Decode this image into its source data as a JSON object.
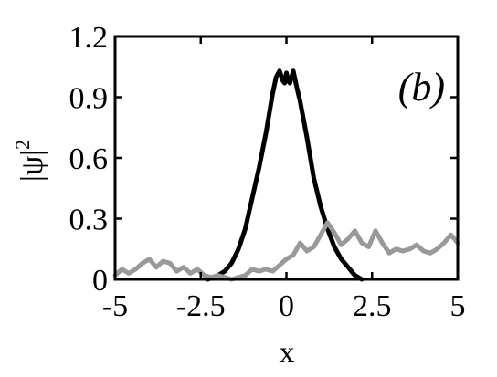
{
  "chart_data": {
    "type": "line",
    "panel_label": "(b)",
    "xlabel": "x",
    "ylabel_base": "|ψ|",
    "ylabel_sup": "2",
    "xlim": [
      -5,
      5
    ],
    "ylim": [
      0,
      1.2
    ],
    "xticks": [
      -5,
      -2.5,
      0,
      2.5,
      5
    ],
    "xtick_labels": [
      "-5",
      "-2.5",
      "0",
      "2.5",
      "5"
    ],
    "yticks": [
      0,
      0.3,
      0.6,
      0.9,
      1.2
    ],
    "ytick_labels": [
      "0",
      "0.3",
      "0.6",
      "0.9",
      "1.2"
    ],
    "grid": false,
    "series": [
      {
        "color": "#000000",
        "x": [
          -2.3,
          -2.0,
          -1.8,
          -1.6,
          -1.4,
          -1.2,
          -1.0,
          -0.8,
          -0.6,
          -0.4,
          -0.3,
          -0.2,
          -0.1,
          -0.05,
          0.0,
          0.05,
          0.1,
          0.2,
          0.3,
          0.4,
          0.6,
          0.8,
          1.0,
          1.2,
          1.4,
          1.6,
          1.8,
          2.0,
          2.2
        ],
        "y": [
          0.0,
          0.02,
          0.04,
          0.08,
          0.15,
          0.25,
          0.4,
          0.55,
          0.72,
          0.92,
          1.0,
          1.03,
          0.98,
          0.97,
          1.02,
          0.98,
          0.97,
          1.03,
          0.95,
          0.88,
          0.7,
          0.5,
          0.36,
          0.25,
          0.16,
          0.1,
          0.06,
          0.02,
          0.0
        ]
      },
      {
        "color": "#999999",
        "x": [
          -5.0,
          -4.8,
          -4.6,
          -4.4,
          -4.2,
          -4.0,
          -3.8,
          -3.6,
          -3.4,
          -3.2,
          -3.0,
          -2.8,
          -2.6,
          -2.4,
          -2.2,
          -2.0,
          -1.8,
          -1.6,
          -1.4,
          -1.2,
          -1.0,
          -0.8,
          -0.6,
          -0.4,
          -0.2,
          0.0,
          0.2,
          0.4,
          0.6,
          0.8,
          1.0,
          1.2,
          1.4,
          1.6,
          1.8,
          2.0,
          2.2,
          2.4,
          2.6,
          2.8,
          3.0,
          3.2,
          3.4,
          3.6,
          3.8,
          4.0,
          4.2,
          4.4,
          4.6,
          4.8,
          5.0
        ],
        "y": [
          0.02,
          0.05,
          0.03,
          0.05,
          0.08,
          0.1,
          0.06,
          0.09,
          0.08,
          0.04,
          0.06,
          0.03,
          0.05,
          0.02,
          0.01,
          0.02,
          0.01,
          0.0,
          0.01,
          0.02,
          0.05,
          0.04,
          0.05,
          0.04,
          0.07,
          0.1,
          0.12,
          0.18,
          0.14,
          0.16,
          0.22,
          0.28,
          0.23,
          0.17,
          0.2,
          0.24,
          0.18,
          0.16,
          0.24,
          0.18,
          0.13,
          0.15,
          0.14,
          0.15,
          0.17,
          0.14,
          0.13,
          0.15,
          0.18,
          0.22,
          0.18
        ]
      }
    ]
  }
}
